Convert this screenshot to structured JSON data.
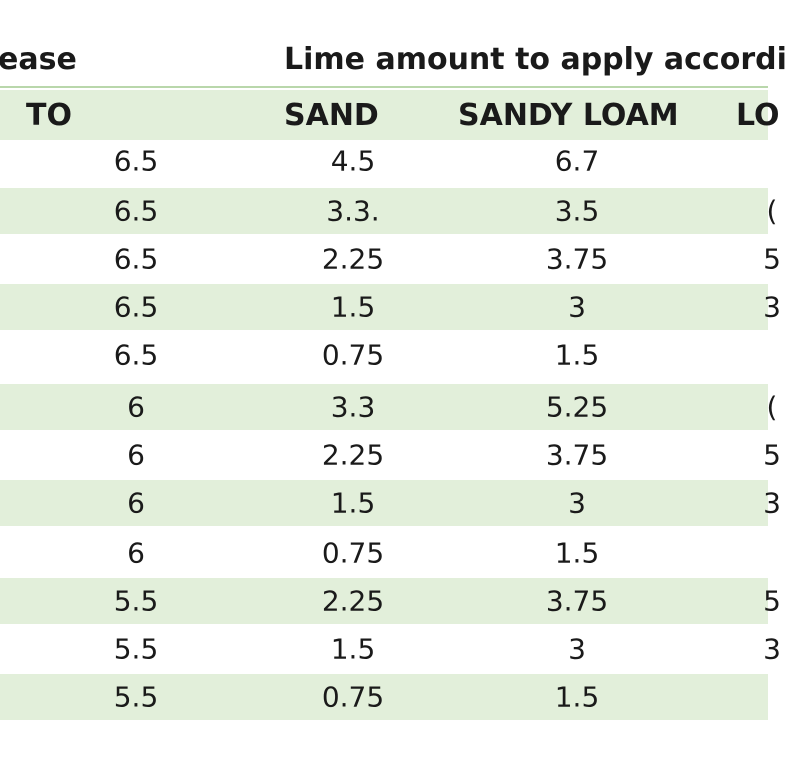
{
  "header": {
    "left_text": "ease",
    "right_text": "Lime amount to apply accordi"
  },
  "columns": {
    "to": "TO",
    "sand": "SAND",
    "sandy_loam": "SANDY LOAM",
    "loam_partial": "LO"
  },
  "rows": [
    {
      "to": "6.5",
      "sand": "4.5",
      "sandy_loam": "6.7",
      "loam_partial": ""
    },
    {
      "to": "6.5",
      "sand": "3.3.",
      "sandy_loam": "3.5",
      "loam_partial": "("
    },
    {
      "to": "6.5",
      "sand": "2.25",
      "sandy_loam": "3.75",
      "loam_partial": "5"
    },
    {
      "to": "6.5",
      "sand": "1.5",
      "sandy_loam": "3",
      "loam_partial": "3"
    },
    {
      "to": "6.5",
      "sand": "0.75",
      "sandy_loam": "1.5",
      "loam_partial": ""
    },
    {
      "to": "6",
      "sand": "3.3",
      "sandy_loam": "5.25",
      "loam_partial": "("
    },
    {
      "to": "6",
      "sand": "2.25",
      "sandy_loam": "3.75",
      "loam_partial": "5"
    },
    {
      "to": "6",
      "sand": "1.5",
      "sandy_loam": "3",
      "loam_partial": "3"
    },
    {
      "to": "6",
      "sand": "0.75",
      "sandy_loam": "1.5",
      "loam_partial": ""
    },
    {
      "to": "5.5",
      "sand": "2.25",
      "sandy_loam": "3.75",
      "loam_partial": "5"
    },
    {
      "to": "5.5",
      "sand": "1.5",
      "sandy_loam": "3",
      "loam_partial": "3"
    },
    {
      "to": "5.5",
      "sand": "0.75",
      "sandy_loam": "1.5",
      "loam_partial": ""
    }
  ],
  "colors": {
    "row_shade": "#e2efda",
    "header_rule": "#b9d7ab"
  }
}
